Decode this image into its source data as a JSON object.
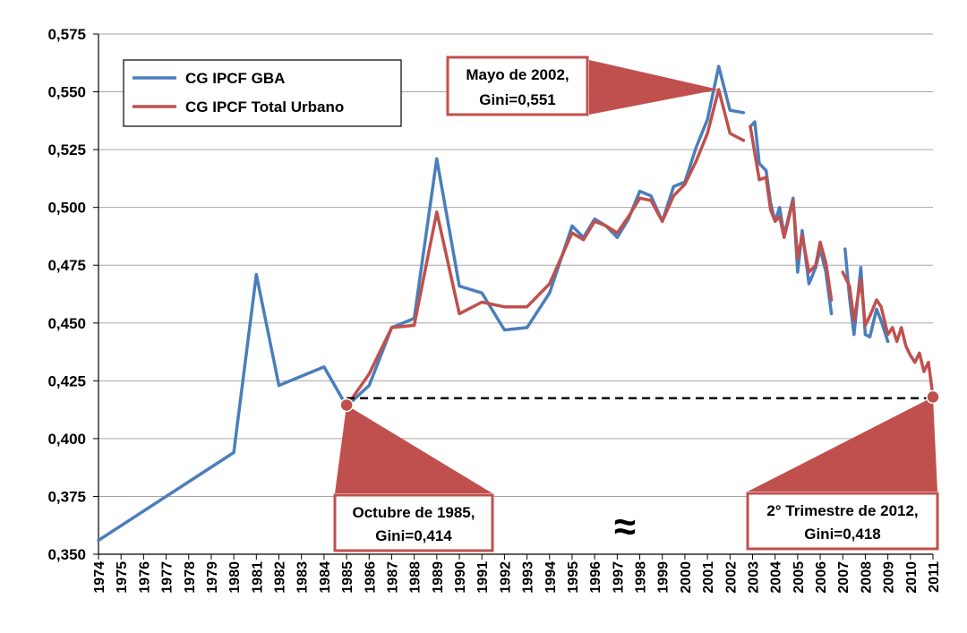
{
  "chart_data": {
    "type": "line",
    "y_ticks": [
      "0,350",
      "0,375",
      "0,400",
      "0,425",
      "0,450",
      "0,475",
      "0,500",
      "0,525",
      "0,550",
      "0,575"
    ],
    "ylim": [
      0.35,
      0.575
    ],
    "x_ticks": [
      "1974",
      "1975",
      "1976",
      "1977",
      "1978",
      "1979",
      "1980",
      "1981",
      "1982",
      "1983",
      "1984",
      "1985",
      "1986",
      "1987",
      "1988",
      "1989",
      "1990",
      "1991",
      "1992",
      "1993",
      "1994",
      "1995",
      "1996",
      "1997",
      "1998",
      "1999",
      "2000",
      "2001",
      "2002",
      "2003",
      "2004",
      "2005",
      "2006",
      "2007",
      "2008",
      "2009",
      "2010",
      "2011"
    ],
    "grid": true,
    "legend_position": "top-left",
    "series": [
      {
        "name": "CG IPCF GBA",
        "color": "#4a7ebb",
        "segments": [
          [
            [
              1974,
              0.356
            ],
            [
              1980,
              0.394
            ],
            [
              1981,
              0.471
            ],
            [
              1982,
              0.423
            ],
            [
              1984,
              0.431
            ],
            [
              1985,
              0.414
            ],
            [
              1986,
              0.423
            ],
            [
              1987,
              0.448
            ],
            [
              1988,
              0.452
            ],
            [
              1989,
              0.521
            ],
            [
              1990,
              0.466
            ],
            [
              1991,
              0.463
            ],
            [
              1992,
              0.447
            ],
            [
              1993,
              0.448
            ],
            [
              1994,
              0.463
            ],
            [
              1995,
              0.492
            ],
            [
              1995.5,
              0.487
            ],
            [
              1996,
              0.495
            ],
            [
              1996.5,
              0.492
            ],
            [
              1997,
              0.487
            ],
            [
              1997.5,
              0.495
            ],
            [
              1998,
              0.507
            ],
            [
              1998.5,
              0.505
            ],
            [
              1999,
              0.494
            ],
            [
              1999.5,
              0.509
            ],
            [
              2000,
              0.511
            ],
            [
              2000.5,
              0.526
            ],
            [
              2001,
              0.538
            ],
            [
              2001.5,
              0.561
            ],
            [
              2002,
              0.542
            ],
            [
              2002.6,
              0.541
            ]
          ],
          [
            [
              2002.9,
              0.535
            ],
            [
              2003.1,
              0.537
            ],
            [
              2003.3,
              0.519
            ],
            [
              2003.6,
              0.516
            ],
            [
              2003.8,
              0.502
            ],
            [
              2004,
              0.494
            ],
            [
              2004.2,
              0.5
            ],
            [
              2004.4,
              0.488
            ],
            [
              2004.8,
              0.504
            ],
            [
              2005,
              0.472
            ],
            [
              2005.2,
              0.49
            ],
            [
              2005.5,
              0.467
            ],
            [
              2005.8,
              0.474
            ],
            [
              2006,
              0.482
            ],
            [
              2006.25,
              0.472
            ],
            [
              2006.5,
              0.454
            ]
          ],
          [
            [
              2007.1,
              0.482
            ],
            [
              2007.3,
              0.461
            ],
            [
              2007.5,
              0.445
            ],
            [
              2007.8,
              0.474
            ],
            [
              2008,
              0.445
            ],
            [
              2008.2,
              0.444
            ],
            [
              2008.5,
              0.456
            ],
            [
              2008.7,
              0.451
            ],
            [
              2009,
              0.442
            ]
          ]
        ]
      },
      {
        "name": "CG IPCF Total Urbano",
        "color": "#c0504d",
        "segments": [
          [
            [
              1985,
              0.414
            ],
            [
              1986,
              0.428
            ],
            [
              1987,
              0.448
            ],
            [
              1988,
              0.449
            ],
            [
              1989,
              0.498
            ],
            [
              1990,
              0.454
            ],
            [
              1991,
              0.459
            ],
            [
              1992,
              0.457
            ],
            [
              1993,
              0.457
            ],
            [
              1994,
              0.467
            ],
            [
              1995,
              0.489
            ],
            [
              1995.5,
              0.486
            ],
            [
              1996,
              0.494
            ],
            [
              1996.5,
              0.492
            ],
            [
              1997,
              0.489
            ],
            [
              1997.5,
              0.496
            ],
            [
              1998,
              0.504
            ],
            [
              1998.5,
              0.503
            ],
            [
              1999,
              0.494
            ],
            [
              1999.5,
              0.505
            ],
            [
              2000,
              0.51
            ],
            [
              2000.5,
              0.52
            ],
            [
              2001,
              0.532
            ],
            [
              2001.5,
              0.551
            ],
            [
              2002,
              0.532
            ],
            [
              2002.6,
              0.529
            ]
          ],
          [
            [
              2002.9,
              0.535
            ],
            [
              2003.3,
              0.512
            ],
            [
              2003.6,
              0.513
            ],
            [
              2003.8,
              0.499
            ],
            [
              2004,
              0.494
            ],
            [
              2004.2,
              0.496
            ],
            [
              2004.4,
              0.487
            ],
            [
              2004.8,
              0.503
            ],
            [
              2005,
              0.478
            ],
            [
              2005.2,
              0.488
            ],
            [
              2005.5,
              0.472
            ],
            [
              2005.8,
              0.475
            ],
            [
              2006,
              0.485
            ],
            [
              2006.25,
              0.476
            ],
            [
              2006.5,
              0.46
            ]
          ],
          [
            [
              2007,
              0.472
            ],
            [
              2007.3,
              0.466
            ],
            [
              2007.5,
              0.451
            ],
            [
              2007.8,
              0.469
            ],
            [
              2008,
              0.449
            ],
            [
              2008.2,
              0.453
            ],
            [
              2008.5,
              0.46
            ],
            [
              2008.7,
              0.457
            ],
            [
              2009,
              0.445
            ],
            [
              2009.2,
              0.448
            ],
            [
              2009.4,
              0.442
            ],
            [
              2009.6,
              0.448
            ],
            [
              2009.8,
              0.44
            ],
            [
              2010,
              0.436
            ],
            [
              2010.2,
              0.433
            ],
            [
              2010.4,
              0.437
            ],
            [
              2010.6,
              0.429
            ],
            [
              2010.8,
              0.433
            ],
            [
              2011,
              0.418
            ]
          ]
        ]
      }
    ],
    "reference_line": {
      "from": [
        1985,
        0.4175
      ],
      "to": [
        2011,
        0.4175
      ],
      "style": "dashed",
      "color": "#000000"
    },
    "markers": [
      {
        "point": [
          1985,
          0.4145
        ],
        "color": "#c0504d"
      },
      {
        "point": [
          2011,
          0.418
        ],
        "color": "#c0504d"
      }
    ],
    "annotations": [
      {
        "line1": "Mayo de 2002,",
        "line2": "Gini=0,551",
        "points_to": [
          2001.5,
          0.551
        ]
      },
      {
        "line1": "Octubre de 1985,",
        "line2": "Gini=0,414",
        "points_to": [
          1985,
          0.4145
        ]
      },
      {
        "line1": "2° Trimestre de 2012,",
        "line2": "Gini=0,418",
        "points_to": [
          2011,
          0.418
        ]
      }
    ],
    "break_symbol": "≈"
  }
}
